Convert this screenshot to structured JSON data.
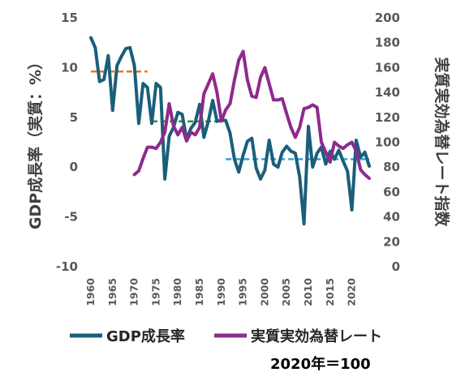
{
  "chart_data": {
    "type": "line",
    "title": "",
    "ylabel_left": "GDP成長率（実質：%）",
    "ylabel_right": "実質実効為替レート指数",
    "yticks_left": [
      "15",
      "10",
      "5",
      "0",
      "-5",
      "-10"
    ],
    "ylim_left": [
      -10,
      15
    ],
    "yticks_right": [
      "200",
      "180",
      "160",
      "140",
      "120",
      "100",
      "80",
      "60",
      "40",
      "20",
      "0"
    ],
    "ylim_right": [
      0,
      200
    ],
    "xlim": [
      1960,
      2024
    ],
    "xticks": [
      "1960",
      "1965",
      "1970",
      "1975",
      "1980",
      "1985",
      "1990",
      "1995",
      "2000",
      "2005",
      "2010",
      "2015",
      "2020"
    ],
    "grid": false,
    "legend_position": "bottom",
    "note": "2020年＝100",
    "series": [
      {
        "name": "GDP成長率",
        "axis": "left",
        "color": "#1a5f7a",
        "x": [
          1960,
          1961,
          1962,
          1963,
          1964,
          1965,
          1966,
          1967,
          1968,
          1969,
          1970,
          1971,
          1972,
          1973,
          1974,
          1975,
          1976,
          1977,
          1978,
          1979,
          1980,
          1981,
          1982,
          1983,
          1984,
          1985,
          1986,
          1987,
          1988,
          1989,
          1990,
          1991,
          1992,
          1993,
          1994,
          1995,
          1996,
          1997,
          1998,
          1999,
          2000,
          2001,
          2002,
          2003,
          2004,
          2005,
          2006,
          2007,
          2008,
          2009,
          2010,
          2011,
          2012,
          2013,
          2014,
          2015,
          2016,
          2017,
          2018,
          2019,
          2020,
          2021,
          2022,
          2023,
          2024
        ],
        "y": [
          13.0,
          12.0,
          8.6,
          8.8,
          11.2,
          5.7,
          10.2,
          11.1,
          11.9,
          12.0,
          10.2,
          4.4,
          8.4,
          8.0,
          4.4,
          8.4,
          8.0,
          -1.2,
          3.1,
          4.0,
          5.5,
          5.3,
          2.8,
          3.9,
          4.5,
          6.3,
          3.0,
          4.6,
          6.7,
          4.6,
          4.7,
          4.7,
          3.4,
          0.8,
          -0.5,
          1.2,
          2.6,
          2.9,
          -0.1,
          -1.2,
          -0.3,
          2.7,
          0.3,
          0.0,
          1.5,
          2.1,
          1.6,
          1.4,
          -1.0,
          -5.7,
          4.1,
          0.0,
          1.4,
          2.0,
          0.3,
          1.6,
          0.8,
          1.7,
          0.6,
          -0.4,
          -4.3,
          2.7,
          1.0,
          1.5,
          0.1
        ]
      },
      {
        "name": "実質実効為替レート",
        "axis": "right",
        "color": "#8e2a8e",
        "x": [
          1970,
          1971,
          1972,
          1973,
          1974,
          1975,
          1976,
          1977,
          1978,
          1979,
          1980,
          1981,
          1982,
          1983,
          1984,
          1985,
          1986,
          1987,
          1988,
          1989,
          1990,
          1991,
          1992,
          1993,
          1994,
          1995,
          1996,
          1997,
          1998,
          1999,
          2000,
          2001,
          2002,
          2003,
          2004,
          2005,
          2006,
          2007,
          2008,
          2009,
          2010,
          2011,
          2012,
          2013,
          2014,
          2015,
          2016,
          2017,
          2018,
          2019,
          2020,
          2021,
          2022,
          2023,
          2024
        ],
        "y": [
          74,
          77,
          87,
          96,
          96,
          95,
          100,
          108,
          131,
          113,
          106,
          112,
          101,
          108,
          106,
          112,
          139,
          147,
          155,
          140,
          117,
          126,
          131,
          150,
          166,
          173,
          150,
          137,
          136,
          152,
          160,
          147,
          134,
          134,
          135,
          123,
          112,
          104,
          112,
          127,
          128,
          130,
          128,
          100,
          92,
          84,
          100,
          97,
          95,
          98,
          100,
          93,
          78,
          74,
          71
        ]
      }
    ],
    "reference_lines": [
      {
        "axis": "left",
        "y": 9.6,
        "x_start": 1960,
        "x_end": 1973,
        "color": "#e07828",
        "style": "dashed"
      },
      {
        "axis": "left",
        "y": 4.6,
        "x_start": 1974,
        "x_end": 1990,
        "color": "#3a8a3a",
        "style": "dashed"
      },
      {
        "axis": "left",
        "y": 0.8,
        "x_start": 1991,
        "x_end": 2024,
        "color": "#35a0d6",
        "style": "dashed"
      }
    ]
  }
}
